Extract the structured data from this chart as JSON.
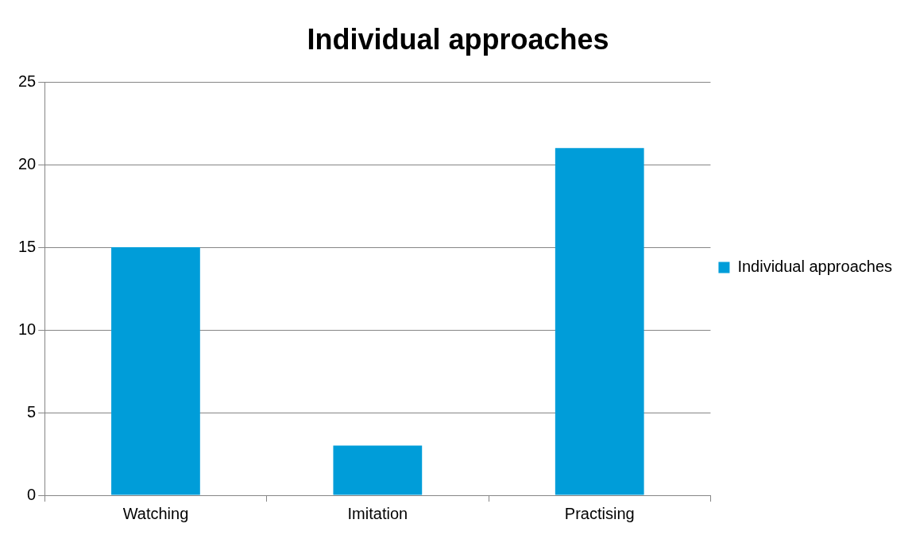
{
  "chart_data": {
    "type": "bar",
    "title": "Individual approaches",
    "categories": [
      "Watching",
      "Imitation",
      "Practising"
    ],
    "series": [
      {
        "name": "Individual approaches",
        "color": "#009dd9",
        "values": [
          15,
          3,
          21
        ]
      }
    ],
    "ylim": [
      0,
      25
    ],
    "yticks": [
      0,
      5,
      10,
      15,
      20,
      25
    ],
    "grid": "y",
    "legend": "right"
  }
}
